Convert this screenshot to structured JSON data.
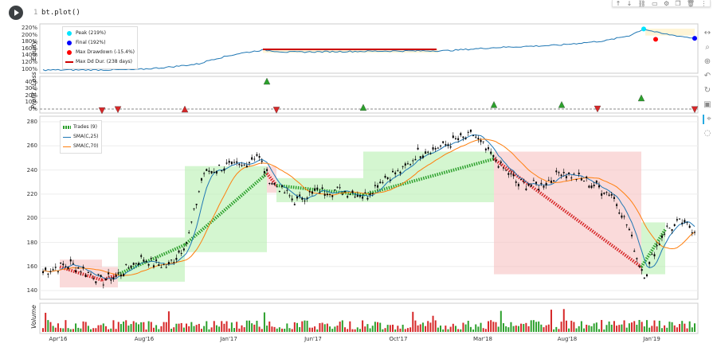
{
  "cell": {
    "line_number": "1",
    "code": "bt.plot()",
    "toolbar_icons": [
      "move-up-icon",
      "move-down-icon",
      "link-icon",
      "comment-icon",
      "settings-icon",
      "copy-icon",
      "delete-icon",
      "more-icon"
    ]
  },
  "equity_panel": {
    "title": "Equity",
    "ticks": [
      "220%",
      "200%",
      "180%",
      "160%",
      "140%",
      "120%",
      "100%"
    ],
    "legend": {
      "peak": "Peak (219%)",
      "final": "Final (192%)",
      "max_drawdown": "Max Drawdown (-15.4%)",
      "max_dd_duration": "Max Dd Dur. (238 days)"
    },
    "colors": {
      "peak": "#00e5ff",
      "final": "#0000ff",
      "drawdown": "#ff0000",
      "duration": "#cc0000",
      "line": "#1f77b4"
    }
  },
  "pl_panel": {
    "title": "Profit / Loss",
    "ticks": [
      "40%",
      "30%",
      "20%",
      "10%",
      "0%"
    ]
  },
  "price_panel": {
    "ticks": [
      "280",
      "260",
      "240",
      "220",
      "200",
      "180",
      "160",
      "140"
    ],
    "legend": {
      "trades": "Trades (9)",
      "sma25": "SMA(C,25)",
      "sma70": "SMA(C,70)"
    },
    "colors": {
      "sma25": "#1f77b4",
      "sma70": "#ff7f0e",
      "win": "#2ca02c",
      "loss": "#d62728"
    }
  },
  "volume_panel": {
    "title": "Volume"
  },
  "x_axis": [
    "Apr'16",
    "Aug'16",
    "Jan'17",
    "Jun'17",
    "Oct'17",
    "Mar'18",
    "Aug'18",
    "Jan'19"
  ],
  "side_tools": [
    "pan-icon",
    "box-zoom-icon",
    "wheel-zoom-icon",
    "undo-icon",
    "reset-icon",
    "save-icon",
    "crosshair-icon",
    "hover-icon"
  ]
}
